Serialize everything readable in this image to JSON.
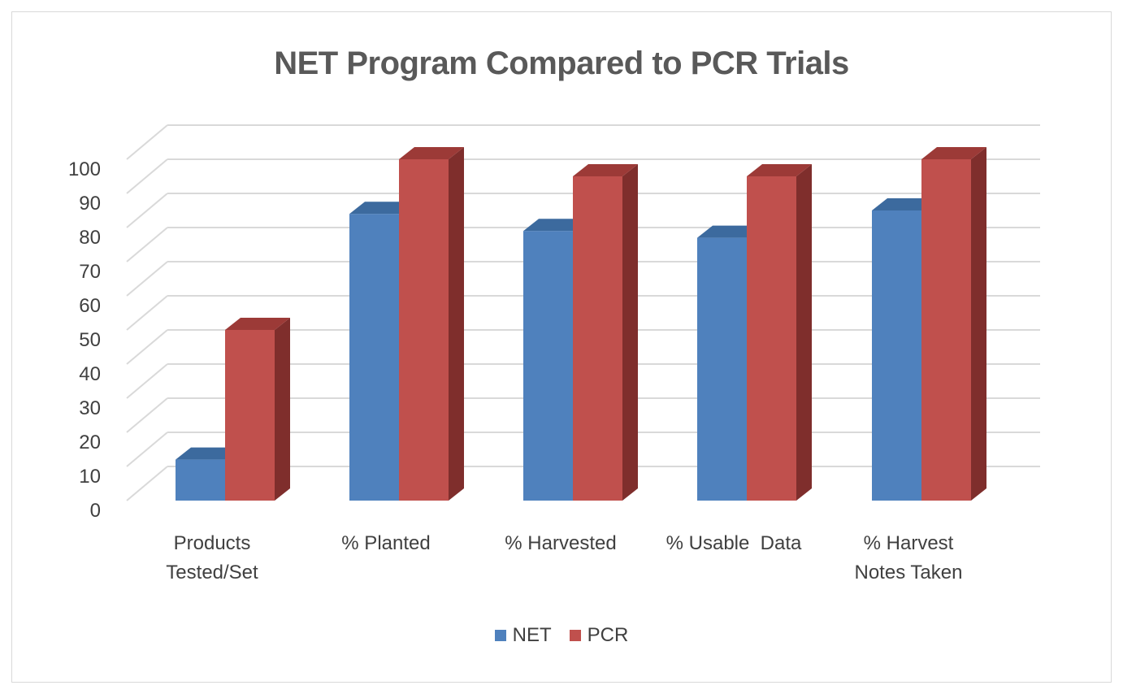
{
  "chart_data": {
    "type": "bar",
    "title": "NET Program Compared to PCR Trials",
    "categories": [
      [
        "Products",
        "Tested/Set"
      ],
      [
        "% Planted"
      ],
      [
        "% Harvested"
      ],
      [
        "% Usable  Data"
      ],
      [
        "% Harvest",
        "Notes Taken"
      ]
    ],
    "series": [
      {
        "name": "NET",
        "values": [
          12,
          84,
          79,
          77,
          85
        ],
        "color": "#4F81BD",
        "side": "#2E5A8A",
        "top": "#3C6A9E"
      },
      {
        "name": "PCR",
        "values": [
          50,
          100,
          95,
          95,
          100
        ],
        "color": "#C0504D",
        "side": "#7F2E2C",
        "top": "#9C3A37"
      }
    ],
    "yticks": [
      0,
      10,
      20,
      30,
      40,
      50,
      60,
      70,
      80,
      90,
      100
    ],
    "ylim": [
      0,
      100
    ],
    "xlabel": "",
    "ylabel": "",
    "grid": true,
    "legend": "bottom"
  }
}
